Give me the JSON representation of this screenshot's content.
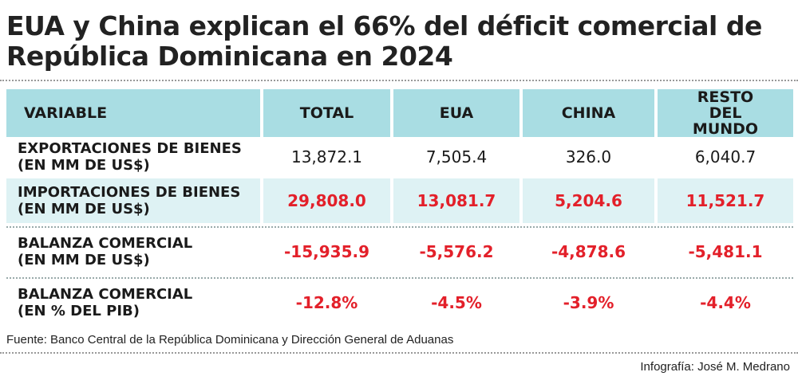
{
  "title": "EUA y China explican el 66% del déficit comercial de República Dominicana en 2024",
  "table": {
    "headers": [
      "VARIABLE",
      "TOTAL",
      "EUA",
      "CHINA",
      "RESTO DEL MUNDO"
    ],
    "rows": [
      {
        "label": "EXPORTACIONES DE BIENES (EN MM DE US$)",
        "values": [
          "13,872.1",
          "7,505.4",
          "326.0",
          "6,040.7"
        ]
      },
      {
        "label": "IMPORTACIONES DE BIENES (EN MM DE US$)",
        "values": [
          "29,808.0",
          "13,081.7",
          "5,204.6",
          "11,521.7"
        ]
      },
      {
        "label": "BALANZA COMERCIAL (EN MM DE US$)",
        "values": [
          "-15,935.9",
          "-5,576.2",
          "-4,878.6",
          "-5,481.1"
        ]
      },
      {
        "label": "BALANZA COMERCIAL (EN % DEL PIB)",
        "values": [
          "-12.8%",
          "-4.5%",
          "-3.9%",
          "-4.4%"
        ]
      }
    ]
  },
  "source": "Fuente: Banco Central de la República Dominicana y Dirección General de Aduanas",
  "credit": "Infografía: José M. Medrano",
  "colors": {
    "header_bg": "#a9dde3",
    "shaded_row_bg": "#def2f4",
    "negative_value": "#e3202a"
  }
}
